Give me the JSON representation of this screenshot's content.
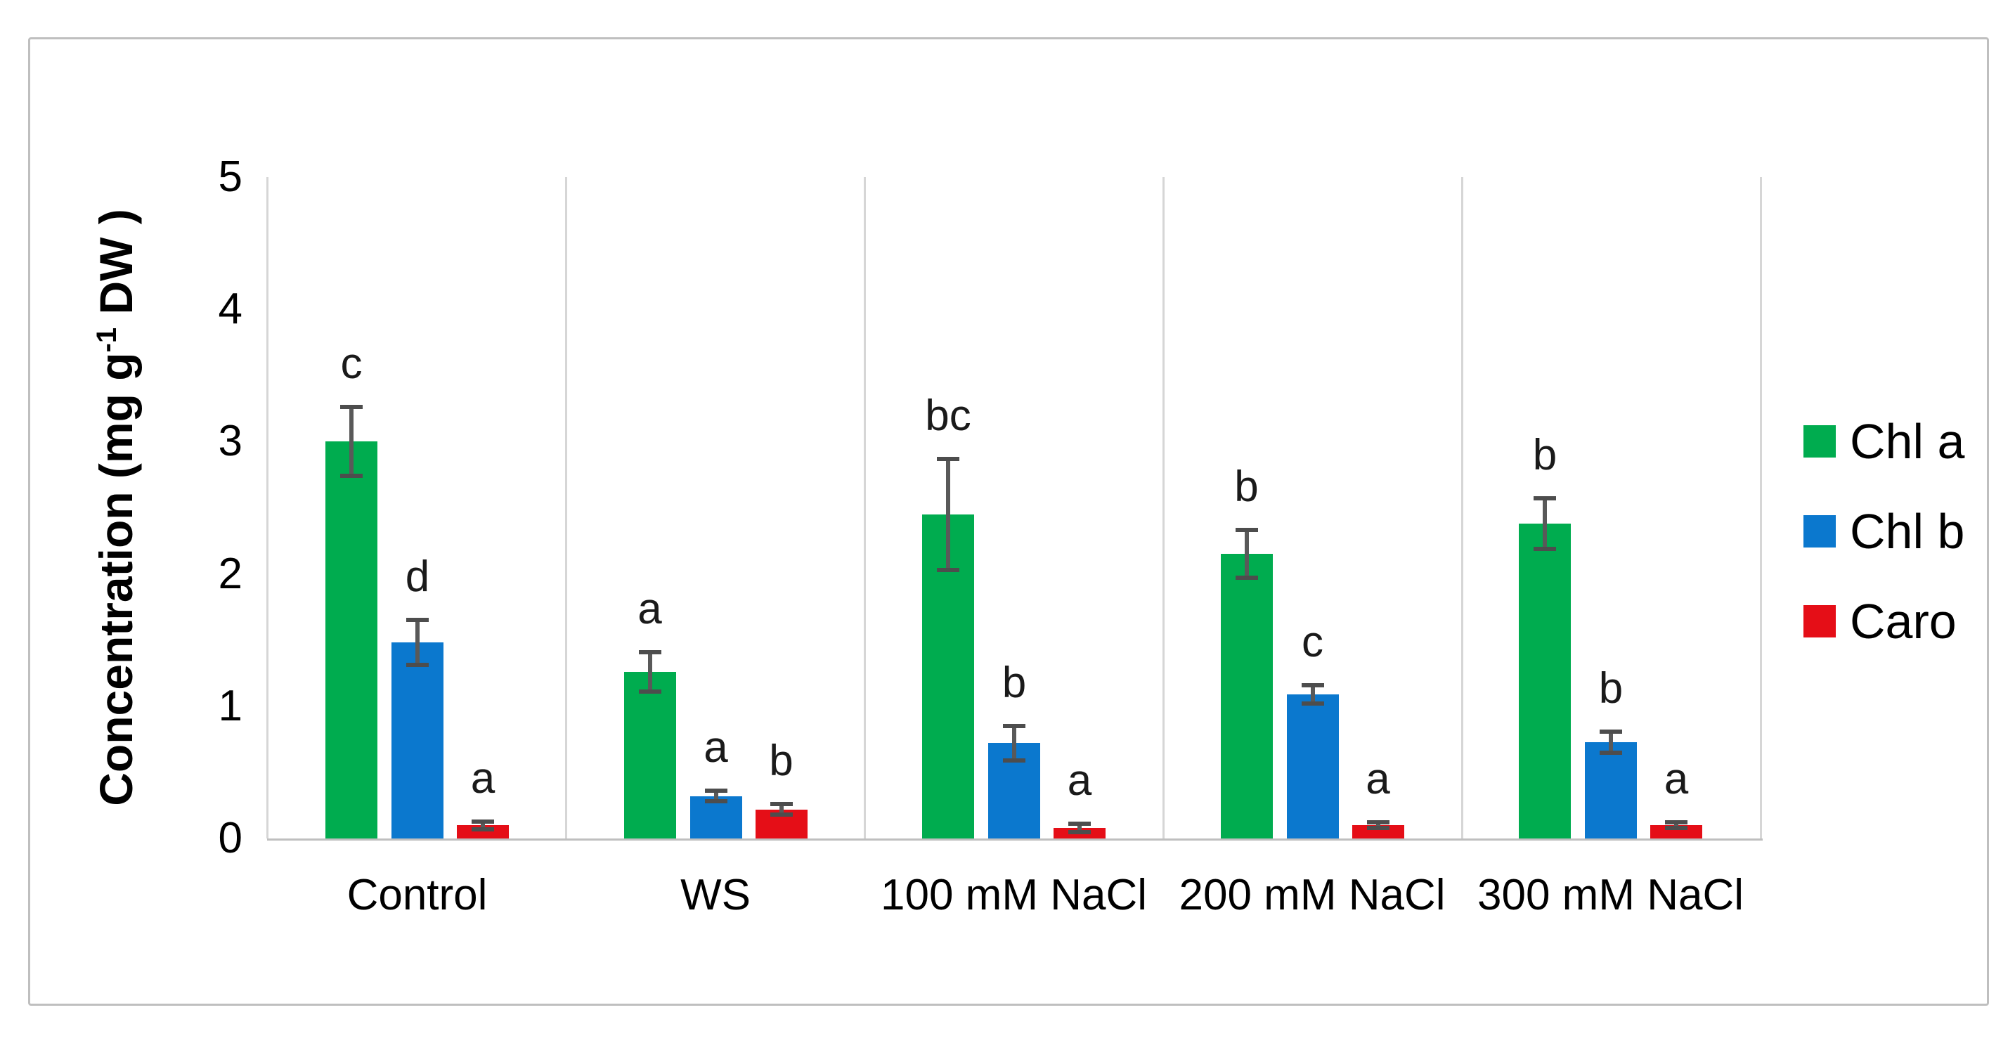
{
  "figure": {
    "background": "#FFFFFF",
    "border_color": "#BFBFBF"
  },
  "y_axis": {
    "title_prefix": "Concentration (mg g",
    "title_sup": "-1",
    "title_suffix": " DW )",
    "ticks": [
      "0",
      "1",
      "2",
      "3",
      "4",
      "5"
    ]
  },
  "chart_data": {
    "type": "bar",
    "categories": [
      "Control",
      "WS",
      "100 mM NaCl",
      "200 mM NaCl",
      "300 mM NaCl"
    ],
    "series": [
      {
        "name": "Chl a",
        "color": "#00AC4F",
        "values": [
          3.0,
          1.26,
          2.45,
          2.15,
          2.38
        ],
        "errors": [
          0.26,
          0.15,
          0.42,
          0.18,
          0.19
        ],
        "letters": [
          "c",
          "a",
          "bc",
          "b",
          "b"
        ]
      },
      {
        "name": "Chl b",
        "color": "#0B78CE",
        "values": [
          1.48,
          0.32,
          0.72,
          1.09,
          0.73
        ],
        "errors": [
          0.17,
          0.04,
          0.13,
          0.07,
          0.08
        ],
        "letters": [
          "d",
          "a",
          "b",
          "c",
          "b"
        ]
      },
      {
        "name": "Caro",
        "color": "#E50E17",
        "values": [
          0.1,
          0.22,
          0.08,
          0.1,
          0.1
        ],
        "errors": [
          0.03,
          0.04,
          0.03,
          0.02,
          0.02
        ],
        "letters": [
          "a",
          "b",
          "a",
          "a",
          "a"
        ]
      }
    ],
    "title": "",
    "xlabel": "",
    "ylabel": "Concentration (mg g-1 DW)",
    "ylim": [
      0,
      5
    ],
    "grid": "vertical-category-separators",
    "legend_position": "right",
    "error_bar_color": "#595959",
    "letter_color": "#1A1A1A"
  }
}
